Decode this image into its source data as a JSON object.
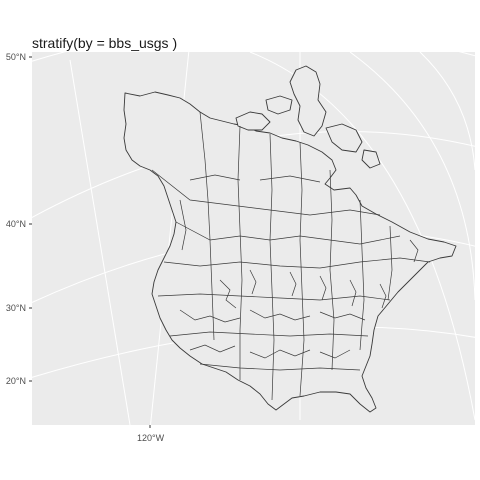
{
  "title": "stratify(by = bbs_usgs )",
  "map": {
    "panel_background": "#ebebeb",
    "graticule_color": "#ffffff",
    "border_color": "#3a3a3a",
    "land_fill": "#ebebeb",
    "latitude_labels": [
      "50°N",
      "40°N",
      "30°N",
      "20°N"
    ],
    "longitude_labels": [
      "120°W"
    ]
  }
}
